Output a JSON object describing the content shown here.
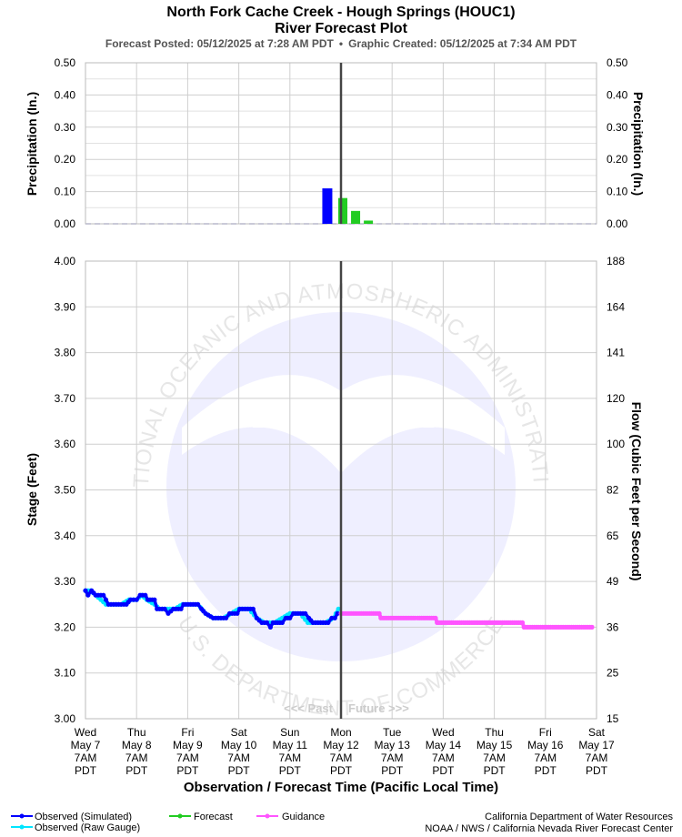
{
  "title": "North Fork Cache Creek - Hough Springs (HOUC1)",
  "subtitle": "River Forecast Plot",
  "meta": {
    "posted": "Forecast Posted: 05/12/2025 at 7:28 AM PDT",
    "sep": "•",
    "created": "Graphic Created: 05/12/2025 at 7:34 AM PDT"
  },
  "watermark": {
    "brand": "NOAA",
    "ring": "NATIONAL OCEANIC AND ATMOSPHERIC ADMINISTRATION",
    "bottom": "U.S. DEPARTMENT OF COMMERCE"
  },
  "past_label": "<<< Past",
  "future_label": "Future >>>",
  "legend": [
    {
      "label": "Observed (Simulated)",
      "color": "#0000ff"
    },
    {
      "label": "Observed (Raw Gauge)",
      "color": "#00e5ff"
    },
    {
      "label": "Forecast",
      "color": "#22cc22"
    },
    {
      "label": "Guidance",
      "color": "#ff55ff"
    }
  ],
  "credits": [
    "California Department of Water Resources",
    "NOAA / NWS / California Nevada River Forecast Center"
  ],
  "chart_data": [
    {
      "type": "bar",
      "name": "precipitation",
      "ylabel": "Precipitation (In.)",
      "ylabel_right": "Precipitation (In.)",
      "ylim": [
        0,
        0.5
      ],
      "yticks": [
        "0.00",
        "0.10",
        "0.20",
        "0.30",
        "0.40",
        "0.50"
      ],
      "xlim": [
        0,
        10
      ],
      "bars": [
        {
          "x": 4.83,
          "value": 0.11,
          "series": "Observed"
        },
        {
          "x": 5.0,
          "value": 0.08,
          "series": "Forecast"
        },
        {
          "x": 5.25,
          "value": 0.04,
          "series": "Forecast"
        },
        {
          "x": 5.5,
          "value": 0.01,
          "series": "Forecast"
        }
      ],
      "grid": true
    },
    {
      "type": "line",
      "name": "stage",
      "xlabel": "Observation / Forecast Time (Pacific Local Time)",
      "ylabel": "Stage (Feet)",
      "ylabel_right": "Flow (Cubic Feet per Second)",
      "ylim": [
        3.0,
        4.0
      ],
      "yticks": [
        "3.00",
        "3.10",
        "3.20",
        "3.30",
        "3.40",
        "3.50",
        "3.60",
        "3.70",
        "3.80",
        "3.90",
        "4.00"
      ],
      "yticks_right": [
        "15",
        "25",
        "36",
        "49",
        "65",
        "82",
        "100",
        "120",
        "141",
        "164",
        "188"
      ],
      "xlim": [
        0,
        10
      ],
      "xticks": [
        {
          "x": 0,
          "lines": [
            "Wed",
            "May 7",
            "7AM",
            "PDT"
          ]
        },
        {
          "x": 1,
          "lines": [
            "Thu",
            "May 8",
            "7AM",
            "PDT"
          ]
        },
        {
          "x": 2,
          "lines": [
            "Fri",
            "May 9",
            "7AM",
            "PDT"
          ]
        },
        {
          "x": 3,
          "lines": [
            "Sat",
            "May 10",
            "7AM",
            "PDT"
          ]
        },
        {
          "x": 4,
          "lines": [
            "Sun",
            "May 11",
            "7AM",
            "PDT"
          ]
        },
        {
          "x": 5,
          "lines": [
            "Mon",
            "May 12",
            "7AM",
            "PDT"
          ]
        },
        {
          "x": 6,
          "lines": [
            "Tue",
            "May 13",
            "7AM",
            "PDT"
          ]
        },
        {
          "x": 7,
          "lines": [
            "Wed",
            "May 14",
            "7AM",
            "PDT"
          ]
        },
        {
          "x": 8,
          "lines": [
            "Thu",
            "May 15",
            "7AM",
            "PDT"
          ]
        },
        {
          "x": 9,
          "lines": [
            "Fri",
            "May 16",
            "7AM",
            "PDT"
          ]
        },
        {
          "x": 10,
          "lines": [
            "Sat",
            "May 17",
            "7AM",
            "PDT"
          ]
        }
      ],
      "now_x": 5.0,
      "grid": true,
      "series": [
        {
          "name": "Observed (Raw Gauge)",
          "color": "#00e5ff",
          "points": [
            [
              0,
              3.28
            ],
            [
              0.1,
              3.28
            ],
            [
              0.2,
              3.27
            ],
            [
              0.3,
              3.26
            ],
            [
              0.4,
              3.25
            ],
            [
              0.55,
              3.25
            ],
            [
              0.7,
              3.25
            ],
            [
              0.85,
              3.26
            ],
            [
              1.0,
              3.26
            ],
            [
              1.1,
              3.27
            ],
            [
              1.2,
              3.26
            ],
            [
              1.35,
              3.25
            ],
            [
              1.45,
              3.24
            ],
            [
              1.6,
              3.24
            ],
            [
              1.75,
              3.24
            ],
            [
              1.9,
              3.25
            ],
            [
              2.05,
              3.25
            ],
            [
              2.2,
              3.25
            ],
            [
              2.35,
              3.23
            ],
            [
              2.5,
              3.22
            ],
            [
              2.7,
              3.22
            ],
            [
              2.85,
              3.23
            ],
            [
              3.0,
              3.24
            ],
            [
              3.2,
              3.24
            ],
            [
              3.35,
              3.22
            ],
            [
              3.5,
              3.21
            ],
            [
              3.7,
              3.21
            ],
            [
              3.85,
              3.22
            ],
            [
              4.0,
              3.23
            ],
            [
              4.2,
              3.23
            ],
            [
              4.35,
              3.21
            ],
            [
              4.5,
              3.21
            ],
            [
              4.7,
              3.21
            ],
            [
              4.85,
              3.22
            ],
            [
              4.95,
              3.24
            ],
            [
              5.0,
              3.24
            ]
          ]
        },
        {
          "name": "Observed (Simulated)",
          "color": "#0000ff",
          "points": [
            [
              0,
              3.28
            ],
            [
              0.05,
              3.27
            ],
            [
              0.12,
              3.28
            ],
            [
              0.2,
              3.27
            ],
            [
              0.35,
              3.27
            ],
            [
              0.4,
              3.26
            ],
            [
              0.45,
              3.25
            ],
            [
              0.6,
              3.25
            ],
            [
              0.8,
              3.25
            ],
            [
              0.88,
              3.26
            ],
            [
              1.0,
              3.26
            ],
            [
              1.07,
              3.27
            ],
            [
              1.17,
              3.27
            ],
            [
              1.22,
              3.26
            ],
            [
              1.35,
              3.26
            ],
            [
              1.4,
              3.24
            ],
            [
              1.55,
              3.24
            ],
            [
              1.62,
              3.23
            ],
            [
              1.72,
              3.24
            ],
            [
              1.87,
              3.24
            ],
            [
              1.92,
              3.25
            ],
            [
              2.2,
              3.25
            ],
            [
              2.27,
              3.24
            ],
            [
              2.35,
              3.23
            ],
            [
              2.5,
              3.22
            ],
            [
              2.75,
              3.22
            ],
            [
              2.82,
              3.23
            ],
            [
              2.97,
              3.23
            ],
            [
              3.02,
              3.24
            ],
            [
              3.28,
              3.24
            ],
            [
              3.35,
              3.22
            ],
            [
              3.45,
              3.21
            ],
            [
              3.55,
              3.21
            ],
            [
              3.62,
              3.2
            ],
            [
              3.67,
              3.21
            ],
            [
              3.85,
              3.21
            ],
            [
              3.92,
              3.22
            ],
            [
              4.0,
              3.22
            ],
            [
              4.07,
              3.23
            ],
            [
              4.3,
              3.23
            ],
            [
              4.37,
              3.22
            ],
            [
              4.45,
              3.21
            ],
            [
              4.75,
              3.21
            ],
            [
              4.82,
              3.22
            ],
            [
              4.88,
              3.22
            ],
            [
              4.93,
              3.23
            ],
            [
              5.0,
              3.23
            ]
          ]
        },
        {
          "name": "Guidance",
          "color": "#ff55ff",
          "points": [
            [
              5.0,
              3.23
            ],
            [
              5.75,
              3.23
            ],
            [
              5.78,
              3.22
            ],
            [
              6.45,
              3.22
            ],
            [
              6.5,
              3.22
            ],
            [
              6.85,
              3.22
            ],
            [
              6.88,
              3.21
            ],
            [
              7.8,
              3.21
            ],
            [
              8.55,
              3.21
            ],
            [
              8.58,
              3.2
            ],
            [
              9.95,
              3.2
            ]
          ]
        }
      ]
    }
  ]
}
